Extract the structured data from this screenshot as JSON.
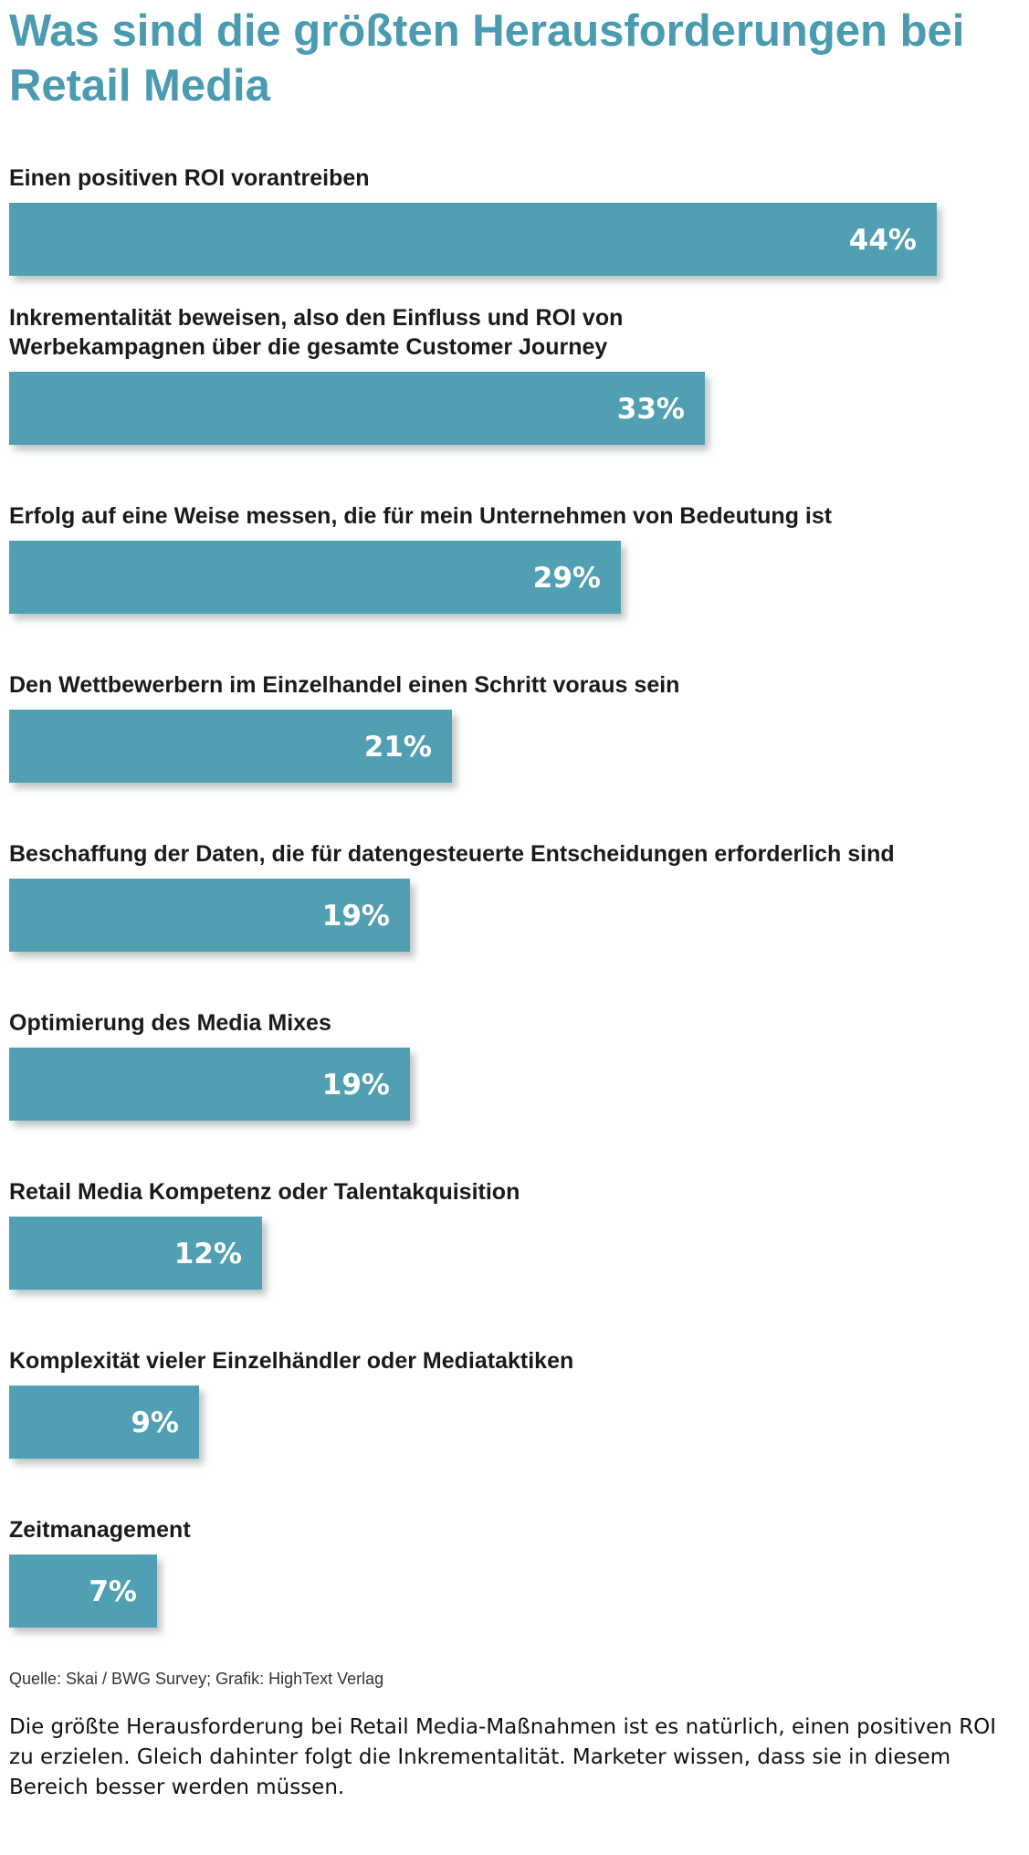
{
  "title": "Was sind die größten Herausforderungen bei Retail Media",
  "source": "Quelle: Skai / BWG Survey; Grafik: HighText Verlag",
  "caption": "Die größte Herausforderung bei Retail Media-Maßnahmen ist es natürlich, einen positiven ROI zu  erzielen. Gleich dahinter folgt die Inkrementalität. Marketer wissen, dass sie in diesem Bereich besser werden müssen.",
  "colors": {
    "title": "#4a9bb0",
    "bar": "#519fb2",
    "bar_shadow": "#9aa3a6",
    "bar_label": "#ffffff"
  },
  "chart_data": {
    "type": "bar",
    "orientation": "horizontal",
    "unit": "%",
    "xlim": [
      0,
      44
    ],
    "grid": false,
    "legend": "none",
    "categories": [
      [
        "Einen positiven ROI vorantreiben"
      ],
      [
        "Inkrementalität beweisen, also den Einfluss und ROI von",
        "Werbekampagnen über die gesamte Customer Journey"
      ],
      [
        "Erfolg auf eine Weise messen, die für mein Unternehmen von Bedeutung ist"
      ],
      [
        "Den Wettbewerbern im Einzelhandel einen Schritt voraus sein"
      ],
      [
        "Beschaffung der Daten, die für datengesteuerte Entscheidungen erforderlich sind"
      ],
      [
        "Optimierung des Media Mixes"
      ],
      [
        "Retail Media Kompetenz oder Talentakquisition"
      ],
      [
        "Komplexität vieler Einzelhändler oder Mediataktiken"
      ],
      [
        "Zeitmanagement"
      ]
    ],
    "values": [
      44,
      33,
      29,
      21,
      19,
      19,
      12,
      9,
      7
    ],
    "value_labels": [
      "44%",
      "33%",
      "29%",
      "21%",
      "19%",
      "19%",
      "12%",
      "9%",
      "7%"
    ]
  }
}
